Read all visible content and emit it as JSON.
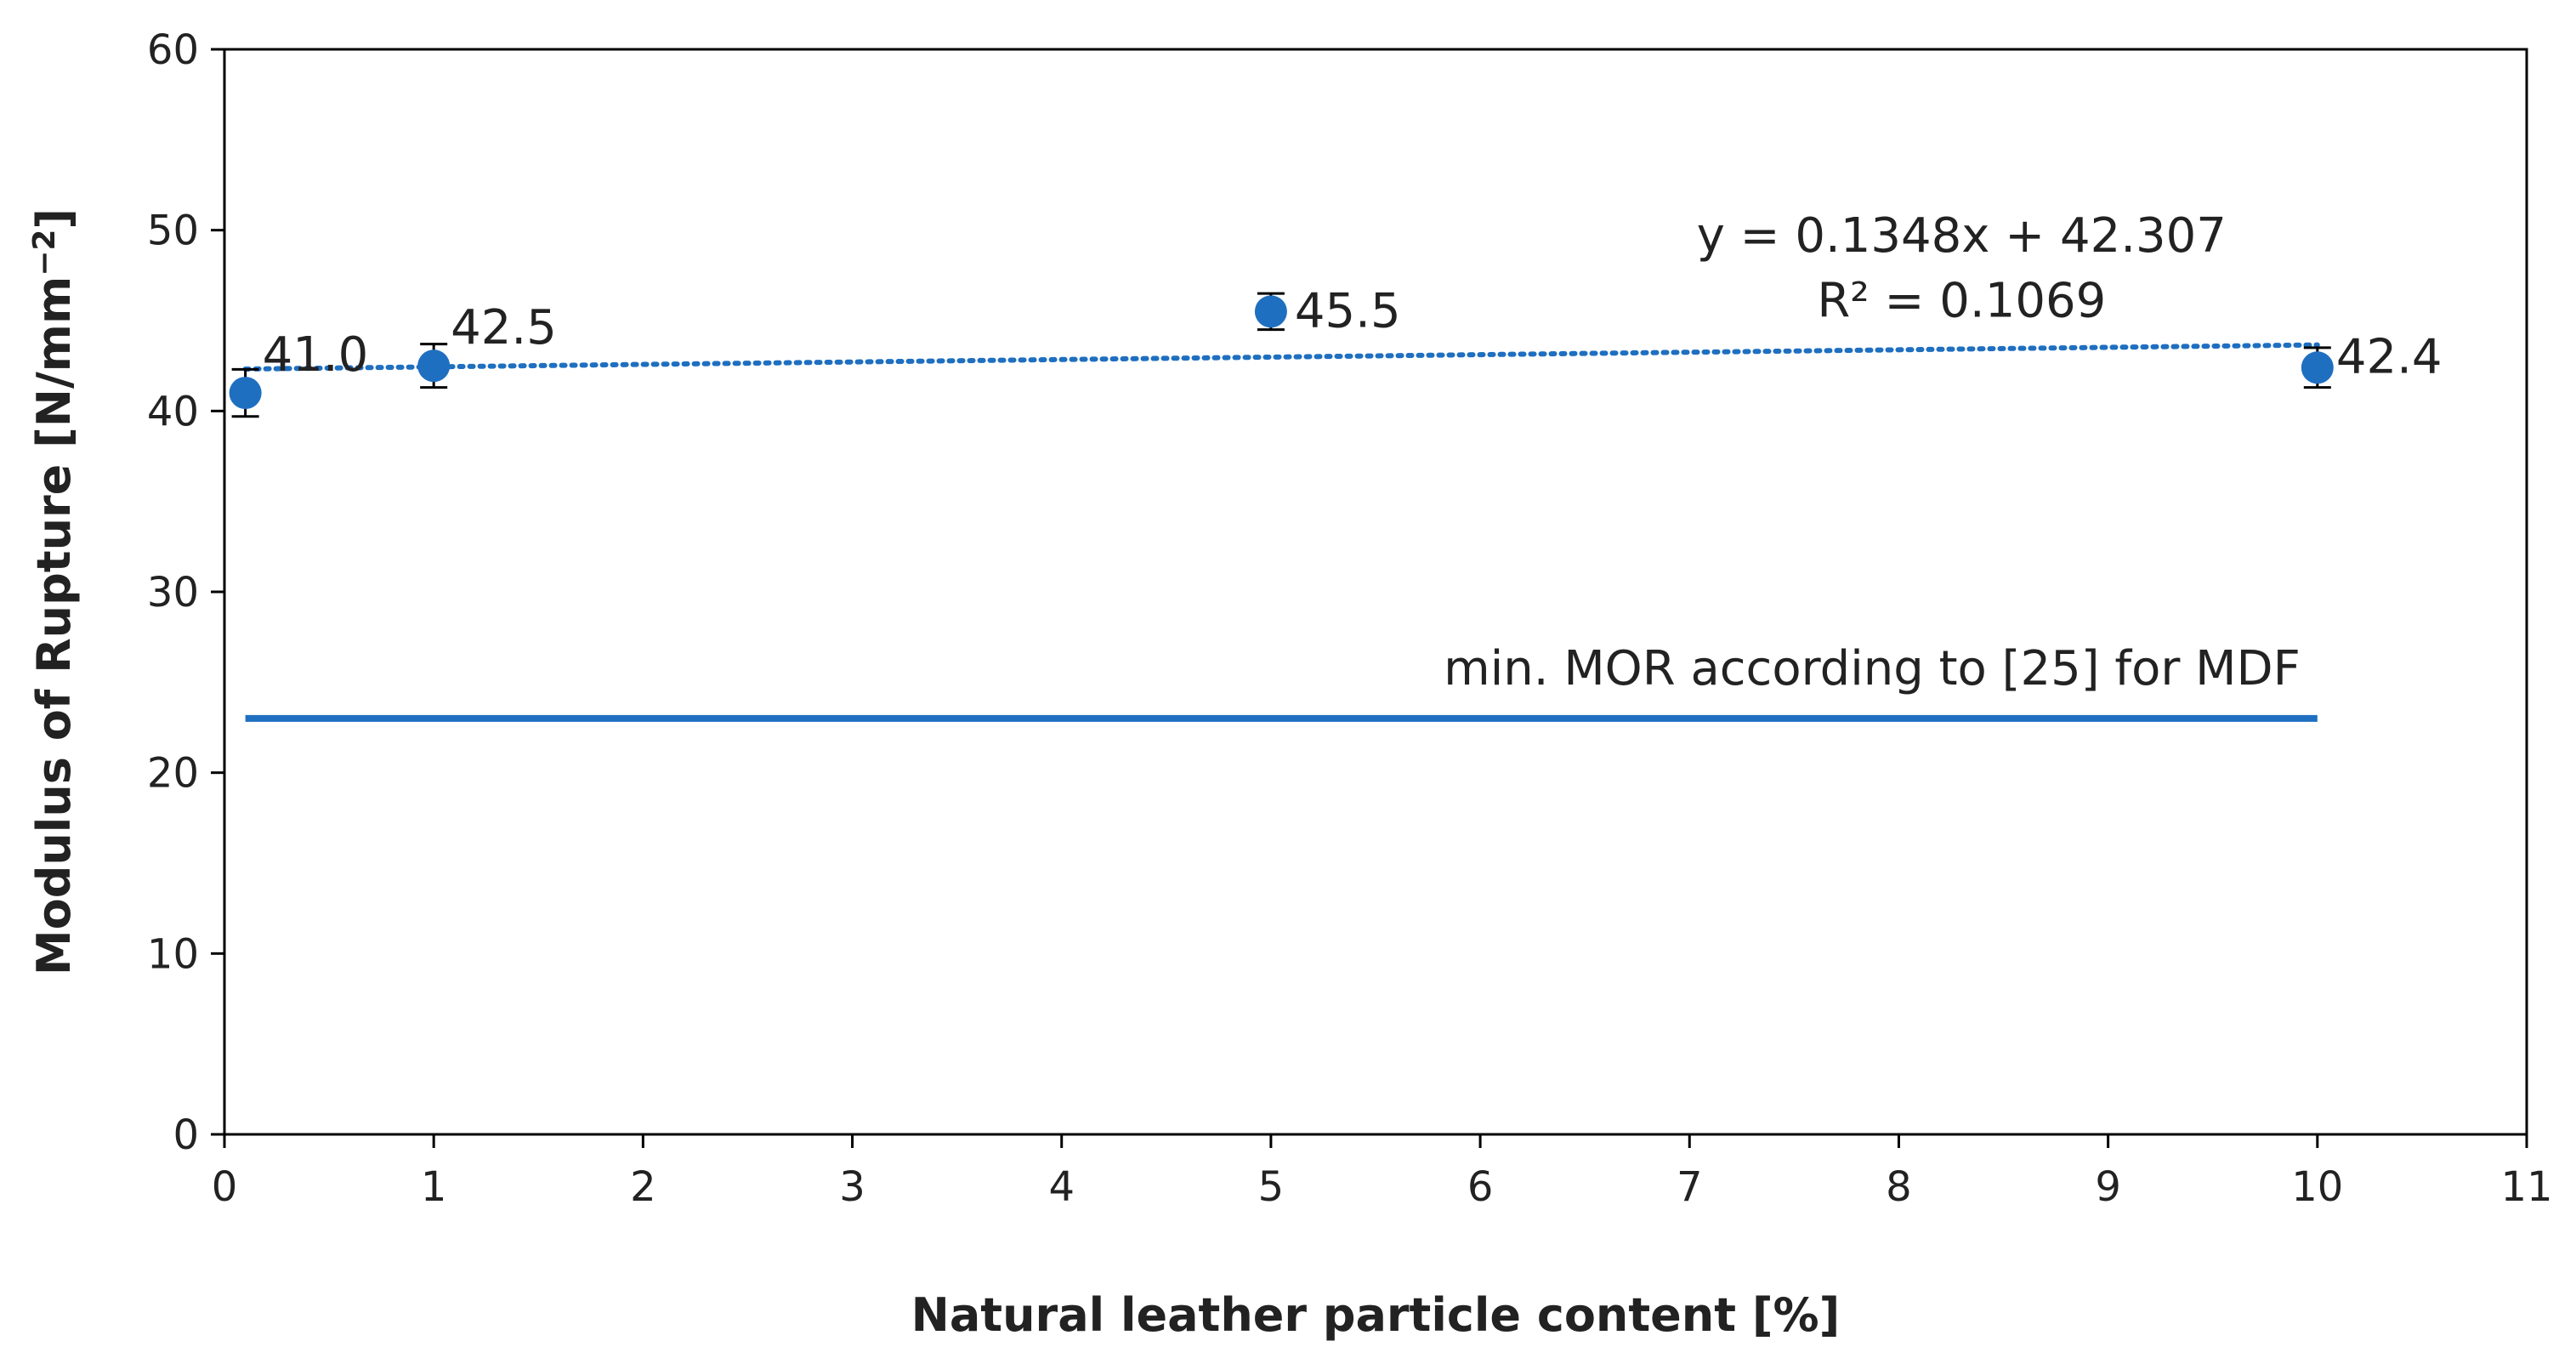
{
  "chart_data": {
    "type": "scatter",
    "title": "",
    "xlabel": "Natural leather particle content [%]",
    "ylabel_main": "Modulus of Rupture [N/mm",
    "ylabel_sup": "−2",
    "ylabel_end": "]",
    "xlim": [
      0,
      11
    ],
    "ylim": [
      0,
      60
    ],
    "x_ticks": [
      0,
      1,
      2,
      3,
      4,
      5,
      6,
      7,
      8,
      9,
      10,
      11
    ],
    "y_ticks": [
      0,
      10,
      20,
      30,
      40,
      50,
      60
    ],
    "x_tick_labels": [
      "0",
      "1",
      "2",
      "3",
      "4",
      "5",
      "6",
      "7",
      "8",
      "9",
      "10",
      "11"
    ],
    "y_tick_labels": [
      "0",
      "10",
      "20",
      "30",
      "40",
      "50",
      "60"
    ],
    "grid": false,
    "series": [
      {
        "x": [
          0.1,
          1,
          5,
          10
        ],
        "y": [
          41.0,
          42.5,
          45.5,
          42.4
        ],
        "error": [
          1.3,
          1.2,
          1.0,
          1.1
        ],
        "labels": [
          "41.0",
          "42.5",
          "45.5",
          "42.4"
        ],
        "color": "#1f6fc0"
      }
    ],
    "trendline": {
      "slope": 0.1348,
      "intercept": 42.307,
      "x_range": [
        0.1,
        10
      ],
      "style": "dotted",
      "equation_text": "y = 0.1348x + 42.307",
      "r2_text": "R² = 0.1069"
    },
    "reference_line": {
      "y": 23,
      "x_range": [
        0.1,
        10
      ],
      "label": "min. MOR according to [25] for MDF",
      "color": "#1f6fc0"
    }
  }
}
